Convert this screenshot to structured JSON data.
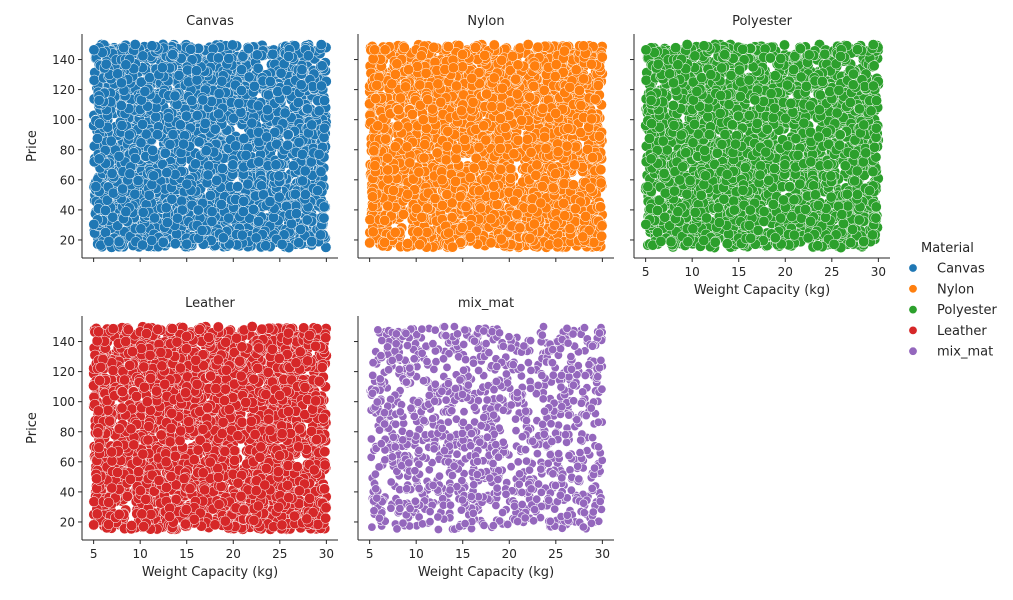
{
  "chart_data": {
    "type": "scatter",
    "facet_by": "Material",
    "xlabel": "Weight Capacity (kg)",
    "ylabel": "Price",
    "xlim": [
      3.75,
      31.25
    ],
    "ylim": [
      8,
      157
    ],
    "xticks": [
      5,
      10,
      15,
      20,
      25,
      30
    ],
    "yticks": [
      20,
      40,
      60,
      80,
      100,
      120,
      140
    ],
    "x_data_range": [
      5,
      30
    ],
    "y_data_range": [
      15,
      150
    ],
    "grid": false,
    "legend": {
      "title": "Material",
      "placement": "right",
      "entries": [
        "Canvas",
        "Nylon",
        "Polyester",
        "Leather",
        "mix_mat"
      ]
    },
    "panels": [
      {
        "title": "Canvas",
        "color": "#1f77b4",
        "approx_point_count": 15000
      },
      {
        "title": "Nylon",
        "color": "#ff7f0e",
        "approx_point_count": 15000
      },
      {
        "title": "Polyester",
        "color": "#2ca02c",
        "approx_point_count": 15000
      },
      {
        "title": "Leather",
        "color": "#d62728",
        "approx_point_count": 15000
      },
      {
        "title": "mix_mat",
        "color": "#9467bd",
        "approx_point_count": 1200
      }
    ]
  }
}
